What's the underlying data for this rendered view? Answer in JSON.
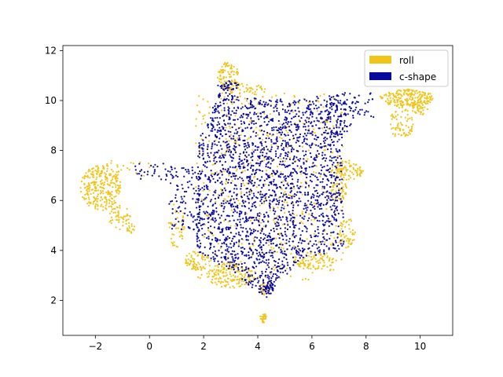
{
  "chart_data": {
    "type": "scatter",
    "title": "",
    "xlabel": "",
    "ylabel": "",
    "xlim": [
      -3.2,
      11.2
    ],
    "ylim": [
      0.6,
      12.2
    ],
    "x_ticks": [
      -2,
      0,
      2,
      4,
      6,
      8,
      10
    ],
    "y_ticks": [
      2,
      4,
      6,
      8,
      10,
      12
    ],
    "x_tick_labels": [
      "−2",
      "0",
      "2",
      "4",
      "6",
      "8",
      "10"
    ],
    "y_tick_labels": [
      "2",
      "4",
      "6",
      "8",
      "10",
      "12"
    ],
    "grid": false,
    "legend_position": "top-right",
    "series": [
      {
        "name": "roll",
        "color": "#f0c419",
        "regions": [
          {
            "shape": "ellipse",
            "center": [
              -1.8,
              6.5
            ],
            "radius": [
              0.75,
              0.9
            ],
            "count": 260
          },
          {
            "shape": "ellipse",
            "center": [
              -1.1,
              5.3
            ],
            "radius": [
              0.4,
              0.5
            ],
            "count": 50
          },
          {
            "shape": "ellipse",
            "center": [
              -0.7,
              4.9
            ],
            "radius": [
              0.15,
              0.25
            ],
            "count": 15
          },
          {
            "shape": "rect",
            "x": [
              -1.6,
              0.0
            ],
            "y": [
              6.9,
              7.6
            ],
            "count": 25
          },
          {
            "shape": "ellipse",
            "center": [
              2.9,
              11.0
            ],
            "radius": [
              0.4,
              0.55
            ],
            "count": 80
          },
          {
            "shape": "ellipse",
            "center": [
              3.2,
              10.5
            ],
            "radius": [
              0.5,
              0.25
            ],
            "count": 40
          },
          {
            "shape": "ellipse",
            "center": [
              4.0,
              10.4
            ],
            "radius": [
              0.35,
              0.2
            ],
            "count": 20
          },
          {
            "shape": "ellipse",
            "center": [
              9.5,
              10.1
            ],
            "radius": [
              1.0,
              0.35
            ],
            "count": 200
          },
          {
            "shape": "ellipse",
            "center": [
              9.3,
              9.1
            ],
            "radius": [
              0.45,
              0.65
            ],
            "count": 70
          },
          {
            "shape": "ellipse",
            "center": [
              10.0,
              9.7
            ],
            "radius": [
              0.3,
              0.3
            ],
            "count": 40
          },
          {
            "shape": "ellipse",
            "center": [
              7.3,
              7.2
            ],
            "radius": [
              0.6,
              0.4
            ],
            "count": 90
          },
          {
            "shape": "ellipse",
            "center": [
              7.0,
              6.4
            ],
            "radius": [
              0.3,
              0.5
            ],
            "count": 40
          },
          {
            "shape": "ellipse",
            "center": [
              7.3,
              4.7
            ],
            "radius": [
              0.3,
              0.6
            ],
            "count": 50
          },
          {
            "shape": "ellipse",
            "center": [
              3.0,
              3.0
            ],
            "radius": [
              0.9,
              0.5
            ],
            "count": 160
          },
          {
            "shape": "ellipse",
            "center": [
              1.8,
              3.6
            ],
            "radius": [
              0.5,
              0.4
            ],
            "count": 70
          },
          {
            "shape": "ellipse",
            "center": [
              6.1,
              3.6
            ],
            "radius": [
              0.8,
              0.35
            ],
            "count": 90
          },
          {
            "shape": "ellipse",
            "center": [
              4.3,
              2.5
            ],
            "radius": [
              0.25,
              0.3
            ],
            "count": 30
          },
          {
            "shape": "ellipse",
            "center": [
              4.2,
              1.3
            ],
            "radius": [
              0.12,
              0.2
            ],
            "count": 25
          },
          {
            "shape": "ellipse",
            "center": [
              1.0,
              5.0
            ],
            "radius": [
              0.3,
              0.9
            ],
            "count": 45
          },
          {
            "shape": "rect",
            "x": [
              1.7,
              7.2
            ],
            "y": [
              2.8,
              10.3
            ],
            "count": 520
          }
        ]
      },
      {
        "name": "c-shape",
        "color": "#0a0a9e",
        "regions": [
          {
            "shape": "polygon",
            "points": [
              [
                1.7,
                4.0
              ],
              [
                1.8,
                8.4
              ],
              [
                2.6,
                10.4
              ],
              [
                4.3,
                10.0
              ],
              [
                6.6,
                10.2
              ],
              [
                7.7,
                9.7
              ],
              [
                7.1,
                8.2
              ],
              [
                7.2,
                4.0
              ],
              [
                5.6,
                3.7
              ],
              [
                4.3,
                2.1
              ],
              [
                3.2,
                3.0
              ]
            ],
            "count": 2300
          },
          {
            "shape": "rect",
            "x": [
              0.7,
              1.9
            ],
            "y": [
              4.8,
              7.4
            ],
            "count": 100
          },
          {
            "shape": "rect",
            "x": [
              -0.6,
              0.9
            ],
            "y": [
              6.8,
              7.6
            ],
            "count": 30
          },
          {
            "shape": "ellipse",
            "center": [
              4.4,
              2.5
            ],
            "radius": [
              0.25,
              0.25
            ],
            "count": 35
          },
          {
            "shape": "ellipse",
            "center": [
              2.9,
              10.6
            ],
            "radius": [
              0.4,
              0.2
            ],
            "count": 35
          },
          {
            "shape": "rect",
            "x": [
              6.6,
              8.3
            ],
            "y": [
              9.3,
              10.3
            ],
            "count": 60
          }
        ]
      }
    ]
  }
}
